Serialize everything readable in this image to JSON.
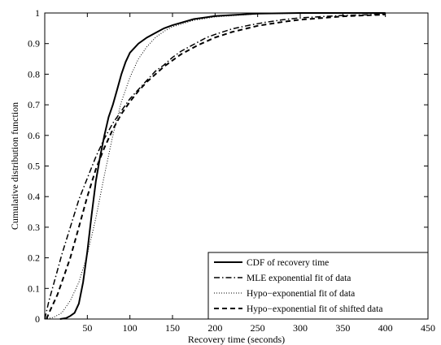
{
  "chart_data": {
    "type": "line",
    "xlabel": "Recovery time (seconds)",
    "ylabel": "Cumulative distribution function",
    "xlim": [
      0,
      450
    ],
    "ylim": [
      0,
      1
    ],
    "xticks": [
      50,
      100,
      150,
      200,
      250,
      300,
      350,
      400,
      450
    ],
    "yticks": [
      0,
      0.1,
      0.2,
      0.3,
      0.4,
      0.5,
      0.6,
      0.7,
      0.8,
      0.9,
      1
    ],
    "grid": false,
    "legend_position": "bottom-right",
    "series": [
      {
        "name": "CDF of recovery time",
        "style": "solid",
        "color": "#000000",
        "points": [
          [
            18,
            0
          ],
          [
            25,
            0.003
          ],
          [
            30,
            0.01
          ],
          [
            35,
            0.02
          ],
          [
            40,
            0.05
          ],
          [
            45,
            0.12
          ],
          [
            50,
            0.22
          ],
          [
            55,
            0.34
          ],
          [
            60,
            0.45
          ],
          [
            65,
            0.53
          ],
          [
            70,
            0.6
          ],
          [
            75,
            0.66
          ],
          [
            80,
            0.7
          ],
          [
            85,
            0.75
          ],
          [
            90,
            0.8
          ],
          [
            95,
            0.84
          ],
          [
            100,
            0.87
          ],
          [
            110,
            0.9
          ],
          [
            120,
            0.92
          ],
          [
            130,
            0.935
          ],
          [
            140,
            0.95
          ],
          [
            150,
            0.96
          ],
          [
            175,
            0.98
          ],
          [
            200,
            0.99
          ],
          [
            250,
            0.998
          ],
          [
            300,
            1.0
          ],
          [
            400,
            1.0
          ]
        ]
      },
      {
        "name": "MLE exponential fit of data",
        "style": "dashdot",
        "color": "#000000",
        "points": [
          [
            0,
            0
          ],
          [
            5,
            0.06
          ],
          [
            10,
            0.11
          ],
          [
            15,
            0.16
          ],
          [
            20,
            0.21
          ],
          [
            30,
            0.3
          ],
          [
            40,
            0.39
          ],
          [
            50,
            0.46
          ],
          [
            60,
            0.53
          ],
          [
            70,
            0.59
          ],
          [
            80,
            0.64
          ],
          [
            90,
            0.68
          ],
          [
            100,
            0.72
          ],
          [
            110,
            0.75
          ],
          [
            120,
            0.78
          ],
          [
            130,
            0.81
          ],
          [
            140,
            0.83
          ],
          [
            150,
            0.855
          ],
          [
            160,
            0.875
          ],
          [
            170,
            0.89
          ],
          [
            180,
            0.905
          ],
          [
            190,
            0.92
          ],
          [
            200,
            0.93
          ],
          [
            220,
            0.948
          ],
          [
            240,
            0.96
          ],
          [
            260,
            0.97
          ],
          [
            280,
            0.978
          ],
          [
            300,
            0.984
          ],
          [
            350,
            0.992
          ],
          [
            400,
            0.996
          ]
        ]
      },
      {
        "name": "Hypo−exponential fit of data",
        "style": "dotted",
        "color": "#000000",
        "points": [
          [
            0,
            0
          ],
          [
            10,
            0.005
          ],
          [
            20,
            0.02
          ],
          [
            30,
            0.06
          ],
          [
            40,
            0.12
          ],
          [
            50,
            0.21
          ],
          [
            60,
            0.33
          ],
          [
            70,
            0.47
          ],
          [
            80,
            0.6
          ],
          [
            90,
            0.71
          ],
          [
            100,
            0.79
          ],
          [
            110,
            0.85
          ],
          [
            120,
            0.89
          ],
          [
            130,
            0.92
          ],
          [
            140,
            0.94
          ],
          [
            150,
            0.955
          ],
          [
            175,
            0.976
          ],
          [
            200,
            0.987
          ],
          [
            250,
            0.997
          ],
          [
            300,
            0.999
          ],
          [
            400,
            1.0
          ]
        ]
      },
      {
        "name": "Hypo−exponential fit of shifted data",
        "style": "dashed",
        "color": "#000000",
        "points": [
          [
            2,
            0
          ],
          [
            5,
            0.02
          ],
          [
            10,
            0.05
          ],
          [
            15,
            0.08
          ],
          [
            20,
            0.12
          ],
          [
            30,
            0.2
          ],
          [
            40,
            0.3
          ],
          [
            50,
            0.4
          ],
          [
            60,
            0.49
          ],
          [
            70,
            0.56
          ],
          [
            80,
            0.62
          ],
          [
            90,
            0.67
          ],
          [
            100,
            0.71
          ],
          [
            110,
            0.745
          ],
          [
            120,
            0.775
          ],
          [
            130,
            0.8
          ],
          [
            140,
            0.825
          ],
          [
            150,
            0.845
          ],
          [
            160,
            0.865
          ],
          [
            180,
            0.895
          ],
          [
            200,
            0.92
          ],
          [
            220,
            0.938
          ],
          [
            250,
            0.958
          ],
          [
            280,
            0.971
          ],
          [
            300,
            0.978
          ],
          [
            350,
            0.989
          ],
          [
            400,
            0.995
          ]
        ]
      }
    ]
  }
}
